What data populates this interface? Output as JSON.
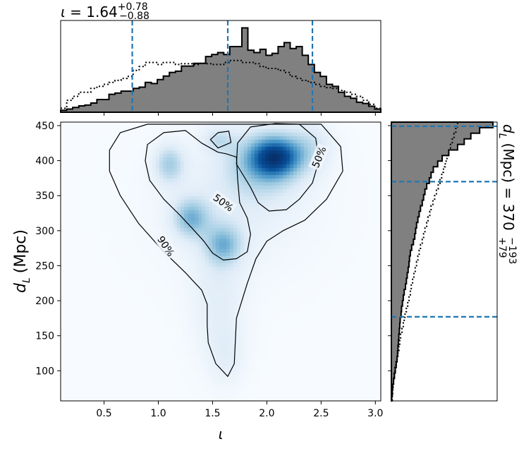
{
  "chart_data": [
    {
      "panel": "joint",
      "type": "heatmap",
      "xlabel": "ι",
      "ylabel_main": "d",
      "ylabel_sub": "L",
      "ylabel_unit": "(Mpc)",
      "xlim": [
        0.1,
        3.05
      ],
      "ylim": [
        57,
        455
      ],
      "xticks": [
        0.5,
        1.0,
        1.5,
        2.0,
        2.5,
        3.0
      ],
      "xtick_labels": [
        "0.5",
        "1.0",
        "1.5",
        "2.0",
        "2.5",
        "3.0"
      ],
      "yticks": [
        100,
        150,
        200,
        250,
        300,
        350,
        400,
        450
      ],
      "ytick_labels": [
        "100",
        "150",
        "200",
        "250",
        "300",
        "350",
        "400",
        "450"
      ],
      "colormap": [
        "#f7fbff",
        "#deebf7",
        "#9ecae1",
        "#4292c6",
        "#08519c",
        "#08306b"
      ],
      "density_peaks": [
        {
          "x": 2.08,
          "y": 405,
          "sx": 0.16,
          "sy": 20,
          "w": 1.0
        },
        {
          "x": 1.95,
          "y": 395,
          "sx": 0.25,
          "sy": 35,
          "w": 0.45
        },
        {
          "x": 1.3,
          "y": 318,
          "sx": 0.12,
          "sy": 20,
          "w": 0.6
        },
        {
          "x": 1.1,
          "y": 395,
          "sx": 0.1,
          "sy": 20,
          "w": 0.5
        },
        {
          "x": 1.6,
          "y": 280,
          "sx": 0.12,
          "sy": 20,
          "w": 0.55
        },
        {
          "x": 1.55,
          "y": 430,
          "sx": 0.1,
          "sy": 12,
          "w": 0.3
        },
        {
          "x": 1.55,
          "y": 200,
          "sx": 0.18,
          "sy": 60,
          "w": 0.22
        },
        {
          "x": 1.63,
          "y": 120,
          "sx": 0.12,
          "sy": 30,
          "w": 0.18
        },
        {
          "x": 2.4,
          "y": 420,
          "sx": 0.15,
          "sy": 25,
          "w": 0.3
        },
        {
          "x": 1.7,
          "y": 340,
          "sx": 0.5,
          "sy": 70,
          "w": 0.2
        }
      ],
      "contours": [
        {
          "level": "90%",
          "points": [
            [
              0.9,
              452
            ],
            [
              2.5,
              452
            ],
            [
              2.68,
              420
            ],
            [
              2.7,
              385
            ],
            [
              2.55,
              345
            ],
            [
              2.35,
              315
            ],
            [
              2.15,
              300
            ],
            [
              2.0,
              285
            ],
            [
              1.9,
              260
            ],
            [
              1.82,
              225
            ],
            [
              1.72,
              175
            ],
            [
              1.7,
              110
            ],
            [
              1.64,
              92
            ],
            [
              1.53,
              110
            ],
            [
              1.46,
              140
            ],
            [
              1.45,
              165
            ],
            [
              1.45,
              195
            ],
            [
              1.4,
              215
            ],
            [
              1.25,
              240
            ],
            [
              1.05,
              270
            ],
            [
              0.82,
              310
            ],
            [
              0.65,
              350
            ],
            [
              0.55,
              385
            ],
            [
              0.55,
              415
            ],
            [
              0.65,
              440
            ]
          ]
        },
        {
          "level": "50%",
          "points": [
            [
              2.08,
              453
            ],
            [
              2.3,
              452
            ],
            [
              2.45,
              432
            ],
            [
              2.48,
              400
            ],
            [
              2.42,
              368
            ],
            [
              2.3,
              345
            ],
            [
              2.18,
              330
            ],
            [
              2.02,
              328
            ],
            [
              1.92,
              340
            ],
            [
              1.85,
              362
            ],
            [
              1.72,
              395
            ],
            [
              1.73,
              425
            ],
            [
              1.85,
              448
            ]
          ]
        },
        {
          "level": "50%",
          "points": [
            [
              0.9,
              423
            ],
            [
              1.05,
              440
            ],
            [
              1.25,
              443
            ],
            [
              1.4,
              425
            ],
            [
              1.55,
              412
            ],
            [
              1.62,
              410
            ],
            [
              1.72,
              405
            ],
            [
              1.73,
              375
            ],
            [
              1.75,
              340
            ],
            [
              1.82,
              318
            ],
            [
              1.85,
              295
            ],
            [
              1.82,
              270
            ],
            [
              1.72,
              260
            ],
            [
              1.6,
              258
            ],
            [
              1.5,
              268
            ],
            [
              1.42,
              285
            ],
            [
              1.32,
              302
            ],
            [
              1.2,
              322
            ],
            [
              1.05,
              345
            ],
            [
              0.92,
              372
            ],
            [
              0.88,
              400
            ]
          ]
        },
        {
          "level": "",
          "points": [
            [
              1.48,
              430
            ],
            [
              1.55,
              440
            ],
            [
              1.65,
              442
            ],
            [
              1.67,
              426
            ],
            [
              1.55,
              418
            ]
          ]
        }
      ],
      "contour_labels": [
        {
          "text": "50%",
          "x": 2.48,
          "y": 405,
          "rotation": -68
        },
        {
          "text": "50%",
          "x": 1.6,
          "y": 340,
          "rotation": 36
        },
        {
          "text": "90%",
          "x": 1.07,
          "y": 278,
          "rotation": 56
        }
      ]
    },
    {
      "panel": "top-marginal",
      "type": "histogram",
      "title_var": "ι",
      "title_value": "1.64",
      "title_plus": "+0.78",
      "title_minus": "−0.88",
      "bin_edges": [
        0.1,
        3.05
      ],
      "posterior": [
        0.5,
        0.8,
        1.2,
        1.6,
        1.8,
        2.3,
        3.2,
        3.2,
        4.5,
        4.8,
        5.3,
        5.3,
        6.0,
        6.3,
        7.5,
        7.2,
        8.2,
        9.1,
        10.0,
        10.3,
        11.6,
        11.6,
        12.3,
        12.3,
        14.0,
        14.5,
        15.0,
        14.5,
        16.5,
        16.5,
        21.2,
        15.6,
        15.0,
        15.8,
        14.3,
        14.8,
        16.5,
        17.5,
        16.0,
        16.5,
        14.3,
        12.0,
        10.0,
        9.0,
        7.0,
        6.5,
        5.0,
        4.0,
        3.5,
        2.5,
        2.2,
        1.5,
        0.8
      ],
      "prior": [
        1,
        3,
        4,
        5,
        5,
        6,
        6.5,
        7,
        7.5,
        8,
        8.5,
        9,
        10.5,
        11.5,
        12.5,
        12.5,
        12,
        12.5,
        12.5,
        12,
        12.2,
        12.2,
        12,
        12.3,
        12.2,
        12,
        12,
        12.5,
        13,
        13,
        12.5,
        12.5,
        12.2,
        11.5,
        11,
        11,
        10.5,
        10,
        9,
        8.5,
        8,
        7.5,
        7,
        6.5,
        6.2,
        6,
        5.5,
        5,
        4.5,
        4,
        3,
        2,
        1
      ],
      "credible_lines": [
        0.76,
        1.64,
        2.42
      ]
    },
    {
      "panel": "right-marginal",
      "type": "histogram",
      "title_var": "d",
      "title_var_sub": "L",
      "title_unit": "(Mpc)",
      "title_value": "370",
      "title_plus": "+79",
      "title_minus": "−193",
      "ylim": [
        57,
        455
      ],
      "posterior": [
        1,
        2,
        3,
        5,
        7,
        9,
        11,
        13,
        14,
        15,
        16,
        17,
        18,
        19,
        20,
        22,
        23,
        25,
        27,
        29,
        32,
        34,
        36,
        38,
        40,
        41,
        43,
        46,
        50,
        53,
        55,
        57,
        60,
        63,
        66,
        70,
        73,
        76,
        80,
        86,
        90,
        95,
        105,
        115,
        130,
        150,
        165,
        180,
        200,
        230
      ],
      "prior": [
        2,
        3,
        4,
        5,
        6,
        8,
        10,
        13,
        15,
        17,
        19,
        21,
        24,
        27,
        29,
        31,
        34,
        37,
        40,
        43,
        45,
        48,
        51,
        54,
        57,
        60,
        63,
        66,
        70,
        73,
        76,
        80,
        83,
        87,
        90,
        94,
        98,
        102,
        106,
        110,
        114,
        118,
        122,
        126,
        130,
        134,
        138,
        142,
        146,
        150
      ],
      "credible_lines": [
        177,
        370,
        449
      ]
    }
  ]
}
